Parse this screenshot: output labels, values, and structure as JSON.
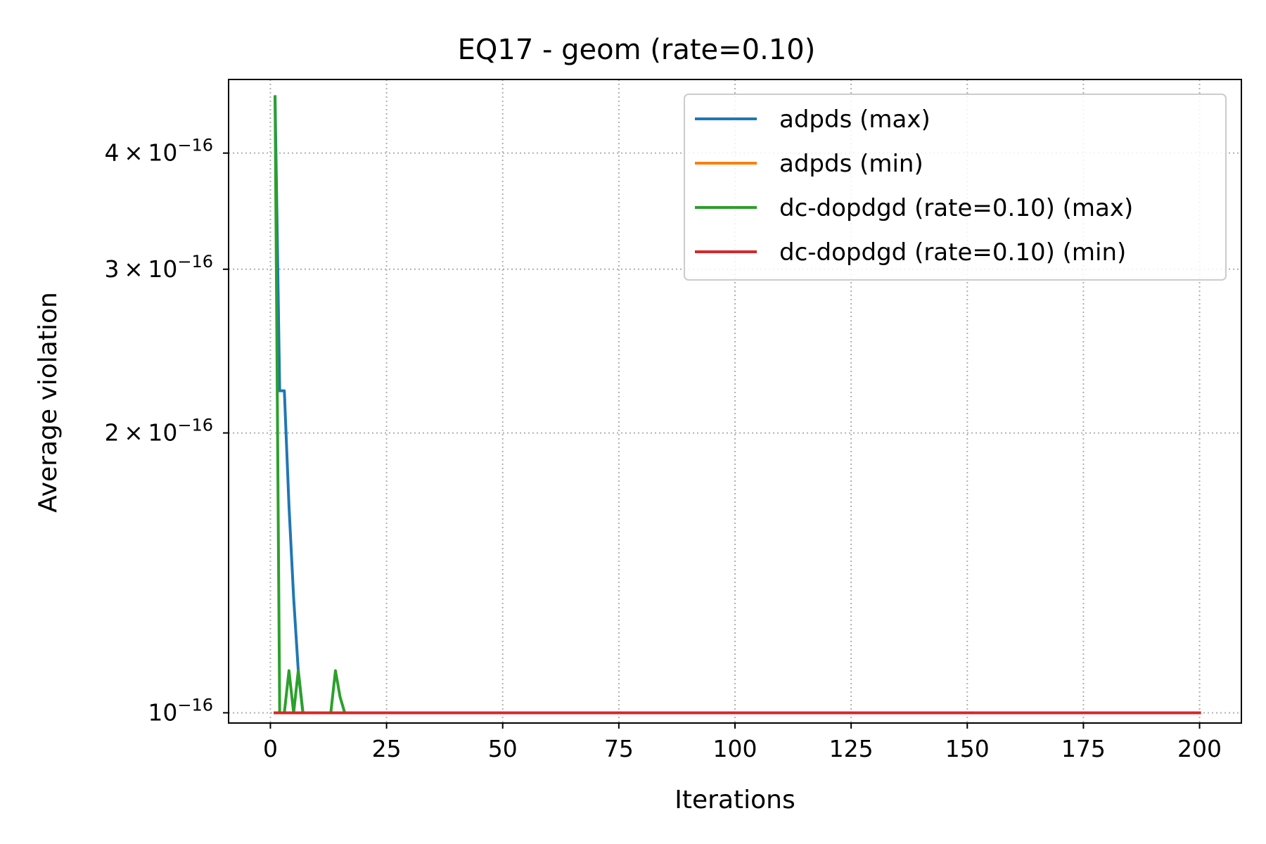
{
  "chart_data": {
    "type": "line",
    "title": "EQ17 - geom (rate=0.10)",
    "xlabel": "Iterations",
    "ylabel": "Average violation",
    "xlim": [
      -9,
      209
    ],
    "ylim": [
      9.75e-17,
      4.8e-16
    ],
    "yscale": "log",
    "grid": true,
    "legend_position": "top-right",
    "xticks": [
      0,
      25,
      50,
      75,
      100,
      125,
      150,
      175,
      200
    ],
    "yticks": [
      {
        "value": 1e-16,
        "mantissa": "",
        "base": "10",
        "exp": "−16"
      },
      {
        "value": 2e-16,
        "mantissa": "2 × 10",
        "base": "",
        "exp": "−16"
      },
      {
        "value": 3e-16,
        "mantissa": "3 × 10",
        "base": "",
        "exp": "−16"
      },
      {
        "value": 4e-16,
        "mantissa": "4 × 10",
        "base": "",
        "exp": "−16"
      }
    ],
    "series": [
      {
        "name": "adpds (max)",
        "color": "#1f77b4",
        "x": [
          1,
          2,
          3,
          4,
          5,
          6,
          7,
          200
        ],
        "y": [
          4.6e-16,
          2.22e-16,
          2.22e-16,
          1.67e-16,
          1.33e-16,
          1.11e-16,
          1e-16,
          1e-16
        ]
      },
      {
        "name": "adpds (min)",
        "color": "#ff7f0e",
        "x": [
          1,
          200
        ],
        "y": [
          1e-16,
          1e-16
        ]
      },
      {
        "name": "dc-dopdgd (rate=0.10) (max)",
        "color": "#2ca02c",
        "x": [
          1,
          2,
          3,
          4,
          5,
          6,
          7,
          13,
          14,
          15,
          16,
          200
        ],
        "y": [
          4.6e-16,
          1e-16,
          1e-16,
          1.11e-16,
          1e-16,
          1.11e-16,
          1e-16,
          1e-16,
          1.11e-16,
          1.04e-16,
          1e-16,
          1e-16
        ]
      },
      {
        "name": "dc-dopdgd (rate=0.10) (min)",
        "color": "#d62728",
        "x": [
          1,
          200
        ],
        "y": [
          1e-16,
          1e-16
        ]
      }
    ]
  }
}
